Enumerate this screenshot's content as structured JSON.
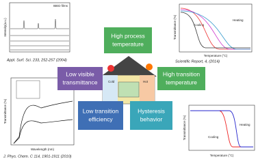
{
  "nodes": [
    {
      "lines": [
        "High process",
        "temperature"
      ]
    },
    {
      "lines": [
        "Low visible",
        "transmittance"
      ]
    },
    {
      "lines": [
        "High transition",
        "temperature"
      ]
    },
    {
      "lines": [
        "Low transition",
        "efficiency"
      ]
    },
    {
      "lines": [
        "Hysteresis",
        "behavior"
      ]
    }
  ],
  "citations": [
    "Appl. Surf. Sci. 233, 252-257 (2004)",
    "Scientific Report, 4, (2014)",
    "J. Phys. Chem. C 114, 1901-1911 (2010)"
  ],
  "plots": [
    {
      "title": "IBED films",
      "ylabel": "Intensity(a.u.)"
    },
    {
      "ylabel": "Transmittance (%)",
      "xlabel": "Temperature (°C)",
      "legend": [
        "Cooling",
        "Heating"
      ]
    },
    {
      "ylabel": "Transmittance (%)",
      "xlabel": "Wavelength (nm)"
    },
    {
      "ylabel": "Transmittance (%)",
      "xlabel": "Temperature (°C)",
      "legend": [
        "Cooling",
        "Heating"
      ]
    }
  ],
  "house": {
    "left": "Cold",
    "right": "Hot"
  }
}
